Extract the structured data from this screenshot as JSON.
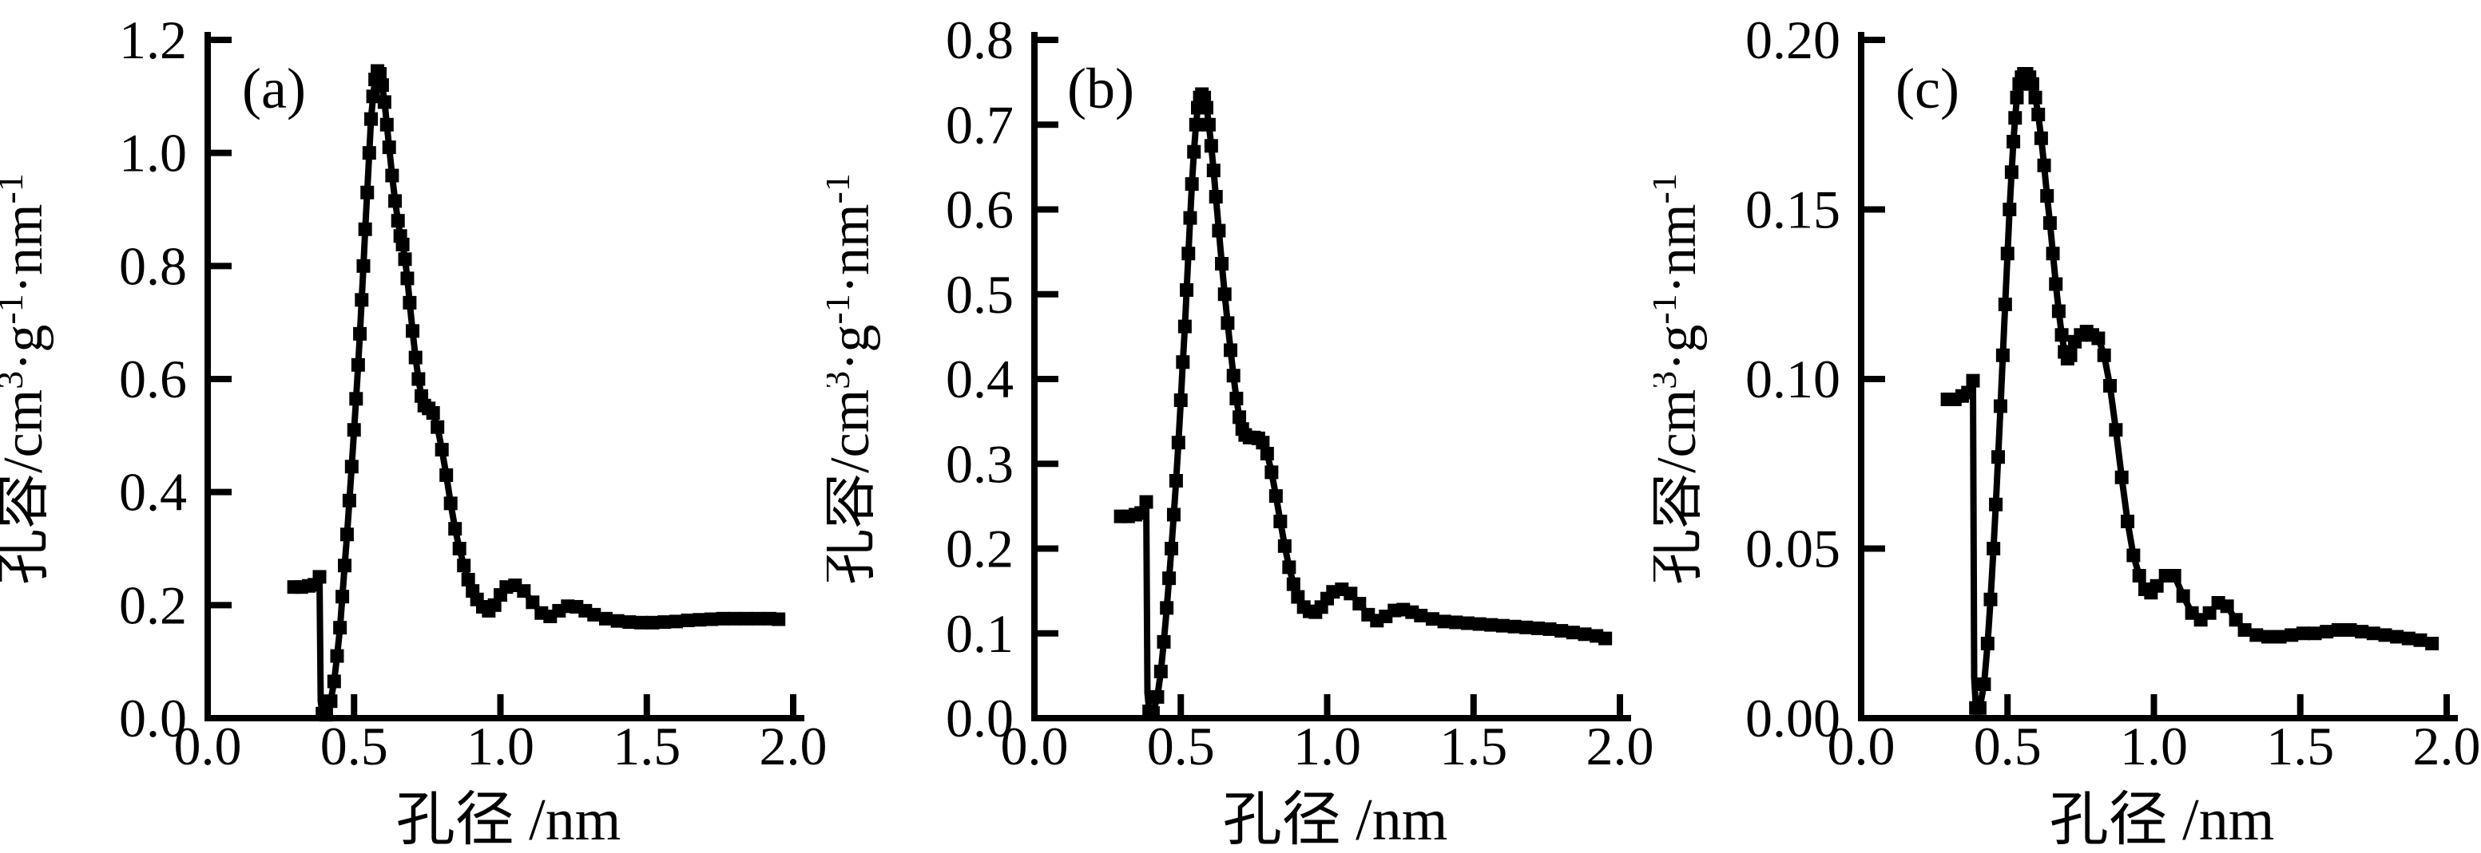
{
  "figure": {
    "background": "#ffffff",
    "ink_color": "#000000",
    "panel_labels": [
      "(a)",
      "(b)",
      "(c)"
    ]
  },
  "chart_data": [
    {
      "type": "line",
      "title": "",
      "panel_label": "(a)",
      "xlabel": "孔径 /nm",
      "ylabel": "孔容/cm³·g⁻¹·nm⁻¹",
      "ylabel_parts": [
        {
          "t": "孔容/cm"
        },
        {
          "t": "3",
          "sup": true
        },
        {
          "t": "·g"
        },
        {
          "t": "-1",
          "sup": true
        },
        {
          "t": "·nm"
        },
        {
          "t": "-1",
          "sup": true
        }
      ],
      "xlim": [
        0.0,
        2.0
      ],
      "ylim": [
        0.0,
        1.2
      ],
      "grid": false,
      "legend": "none",
      "marker": "square",
      "color": "#000000",
      "xticks": {
        "values": [
          0.0,
          0.5,
          1.0,
          1.5,
          2.0
        ],
        "labels": [
          "0.0",
          "0.5",
          "1.0",
          "1.5",
          "2.0"
        ]
      },
      "yticks": {
        "values": [
          0.0,
          0.2,
          0.4,
          0.6,
          0.8,
          1.0,
          1.2
        ],
        "labels": [
          "0.0",
          "0.2",
          "0.4",
          "0.6",
          "0.8",
          "1.0",
          "1.2"
        ]
      },
      "points": [
        [
          0.295,
          0.232
        ],
        [
          0.32,
          0.232
        ],
        [
          0.345,
          0.234
        ],
        [
          0.365,
          0.236
        ],
        [
          0.382,
          0.25
        ],
        [
          0.386,
          0.03
        ],
        [
          0.392,
          0.008
        ],
        [
          0.405,
          0.006
        ],
        [
          0.42,
          0.03
        ],
        [
          0.432,
          0.065
        ],
        [
          0.442,
          0.11
        ],
        [
          0.452,
          0.16
        ],
        [
          0.46,
          0.215
        ],
        [
          0.468,
          0.27
        ],
        [
          0.476,
          0.325
        ],
        [
          0.484,
          0.385
        ],
        [
          0.492,
          0.445
        ],
        [
          0.5,
          0.51
        ],
        [
          0.507,
          0.565
        ],
        [
          0.514,
          0.625
        ],
        [
          0.52,
          0.68
        ],
        [
          0.526,
          0.74
        ],
        [
          0.532,
          0.8
        ],
        [
          0.538,
          0.865
        ],
        [
          0.545,
          0.93
        ],
        [
          0.552,
          1.0
        ],
        [
          0.558,
          1.06
        ],
        [
          0.565,
          1.1
        ],
        [
          0.572,
          1.13
        ],
        [
          0.58,
          1.145
        ],
        [
          0.588,
          1.14
        ],
        [
          0.596,
          1.12
        ],
        [
          0.604,
          1.09
        ],
        [
          0.612,
          1.05
        ],
        [
          0.62,
          1.01
        ],
        [
          0.63,
          0.96
        ],
        [
          0.64,
          0.915
        ],
        [
          0.65,
          0.88
        ],
        [
          0.658,
          0.853
        ],
        [
          0.666,
          0.838
        ],
        [
          0.674,
          0.812
        ],
        [
          0.682,
          0.778
        ],
        [
          0.69,
          0.735
        ],
        [
          0.7,
          0.685
        ],
        [
          0.71,
          0.638
        ],
        [
          0.72,
          0.6
        ],
        [
          0.73,
          0.57
        ],
        [
          0.74,
          0.553
        ],
        [
          0.755,
          0.548
        ],
        [
          0.77,
          0.54
        ],
        [
          0.785,
          0.515
        ],
        [
          0.8,
          0.475
        ],
        [
          0.815,
          0.43
        ],
        [
          0.83,
          0.38
        ],
        [
          0.845,
          0.335
        ],
        [
          0.86,
          0.3
        ],
        [
          0.875,
          0.27
        ],
        [
          0.89,
          0.245
        ],
        [
          0.905,
          0.225
        ],
        [
          0.92,
          0.21
        ],
        [
          0.94,
          0.197
        ],
        [
          0.96,
          0.19
        ],
        [
          0.98,
          0.2
        ],
        [
          1.0,
          0.218
        ],
        [
          1.02,
          0.232
        ],
        [
          1.05,
          0.235
        ],
        [
          1.08,
          0.225
        ],
        [
          1.11,
          0.205
        ],
        [
          1.14,
          0.186
        ],
        [
          1.17,
          0.18
        ],
        [
          1.2,
          0.19
        ],
        [
          1.23,
          0.198
        ],
        [
          1.26,
          0.197
        ],
        [
          1.29,
          0.19
        ],
        [
          1.32,
          0.183
        ],
        [
          1.36,
          0.176
        ],
        [
          1.4,
          0.172
        ],
        [
          1.44,
          0.17
        ],
        [
          1.48,
          0.169
        ],
        [
          1.52,
          0.169
        ],
        [
          1.56,
          0.17
        ],
        [
          1.6,
          0.171
        ],
        [
          1.64,
          0.173
        ],
        [
          1.68,
          0.174
        ],
        [
          1.72,
          0.175
        ],
        [
          1.76,
          0.176
        ],
        [
          1.8,
          0.176
        ],
        [
          1.84,
          0.176
        ],
        [
          1.88,
          0.176
        ],
        [
          1.92,
          0.176
        ],
        [
          1.95,
          0.175
        ]
      ]
    },
    {
      "type": "line",
      "title": "",
      "panel_label": "(b)",
      "xlabel": "孔径 /nm",
      "ylabel": "孔容/cm³·g⁻¹·nm⁻¹",
      "ylabel_parts": [
        {
          "t": "孔容/cm"
        },
        {
          "t": "3",
          "sup": true
        },
        {
          "t": "·g"
        },
        {
          "t": "-1",
          "sup": true
        },
        {
          "t": "·nm"
        },
        {
          "t": "-1",
          "sup": true
        }
      ],
      "xlim": [
        0.0,
        2.0
      ],
      "ylim": [
        0.0,
        0.8
      ],
      "grid": false,
      "legend": "none",
      "marker": "square",
      "color": "#000000",
      "xticks": {
        "values": [
          0.0,
          0.5,
          1.0,
          1.5,
          2.0
        ],
        "labels": [
          "0.0",
          "0.5",
          "1.0",
          "1.5",
          "2.0"
        ]
      },
      "yticks": {
        "values": [
          0.0,
          0.1,
          0.2,
          0.3,
          0.4,
          0.5,
          0.6,
          0.7,
          0.8
        ],
        "labels": [
          "0.0",
          "0.1",
          "0.2",
          "0.3",
          "0.4",
          "0.5",
          "0.6",
          "0.7",
          "0.8"
        ]
      },
      "points": [
        [
          0.295,
          0.238
        ],
        [
          0.32,
          0.238
        ],
        [
          0.345,
          0.24
        ],
        [
          0.365,
          0.242
        ],
        [
          0.382,
          0.255
        ],
        [
          0.386,
          0.03
        ],
        [
          0.392,
          0.008
        ],
        [
          0.405,
          0.006
        ],
        [
          0.42,
          0.025
        ],
        [
          0.432,
          0.055
        ],
        [
          0.442,
          0.09
        ],
        [
          0.452,
          0.13
        ],
        [
          0.46,
          0.165
        ],
        [
          0.468,
          0.2
        ],
        [
          0.476,
          0.24
        ],
        [
          0.484,
          0.28
        ],
        [
          0.492,
          0.325
        ],
        [
          0.5,
          0.375
        ],
        [
          0.507,
          0.42
        ],
        [
          0.514,
          0.462
        ],
        [
          0.52,
          0.505
        ],
        [
          0.526,
          0.548
        ],
        [
          0.532,
          0.59
        ],
        [
          0.538,
          0.63
        ],
        [
          0.545,
          0.668
        ],
        [
          0.552,
          0.7
        ],
        [
          0.558,
          0.72
        ],
        [
          0.565,
          0.732
        ],
        [
          0.572,
          0.736
        ],
        [
          0.58,
          0.732
        ],
        [
          0.588,
          0.72
        ],
        [
          0.596,
          0.7
        ],
        [
          0.604,
          0.675
        ],
        [
          0.612,
          0.646
        ],
        [
          0.62,
          0.615
        ],
        [
          0.63,
          0.575
        ],
        [
          0.64,
          0.536
        ],
        [
          0.65,
          0.5
        ],
        [
          0.66,
          0.466
        ],
        [
          0.67,
          0.434
        ],
        [
          0.68,
          0.404
        ],
        [
          0.69,
          0.377
        ],
        [
          0.7,
          0.355
        ],
        [
          0.71,
          0.341
        ],
        [
          0.72,
          0.334
        ],
        [
          0.735,
          0.331
        ],
        [
          0.75,
          0.331
        ],
        [
          0.765,
          0.33
        ],
        [
          0.78,
          0.325
        ],
        [
          0.795,
          0.312
        ],
        [
          0.81,
          0.29
        ],
        [
          0.825,
          0.262
        ],
        [
          0.84,
          0.232
        ],
        [
          0.855,
          0.203
        ],
        [
          0.87,
          0.178
        ],
        [
          0.885,
          0.158
        ],
        [
          0.9,
          0.143
        ],
        [
          0.92,
          0.131
        ],
        [
          0.94,
          0.126
        ],
        [
          0.96,
          0.125
        ],
        [
          0.98,
          0.131
        ],
        [
          1.0,
          0.141
        ],
        [
          1.02,
          0.149
        ],
        [
          1.05,
          0.152
        ],
        [
          1.08,
          0.147
        ],
        [
          1.11,
          0.135
        ],
        [
          1.14,
          0.122
        ],
        [
          1.17,
          0.115
        ],
        [
          1.2,
          0.12
        ],
        [
          1.23,
          0.127
        ],
        [
          1.26,
          0.128
        ],
        [
          1.29,
          0.125
        ],
        [
          1.32,
          0.121
        ],
        [
          1.36,
          0.117
        ],
        [
          1.4,
          0.114
        ],
        [
          1.44,
          0.113
        ],
        [
          1.48,
          0.112
        ],
        [
          1.52,
          0.111
        ],
        [
          1.56,
          0.11
        ],
        [
          1.6,
          0.109
        ],
        [
          1.64,
          0.108
        ],
        [
          1.68,
          0.107
        ],
        [
          1.72,
          0.106
        ],
        [
          1.76,
          0.105
        ],
        [
          1.8,
          0.103
        ],
        [
          1.84,
          0.101
        ],
        [
          1.88,
          0.099
        ],
        [
          1.92,
          0.097
        ],
        [
          1.95,
          0.094
        ]
      ]
    },
    {
      "type": "line",
      "title": "",
      "panel_label": "(c)",
      "xlabel": "孔径 /nm",
      "ylabel": "孔容/cm³·g⁻¹·nm⁻¹",
      "ylabel_parts": [
        {
          "t": "孔容/cm"
        },
        {
          "t": "3",
          "sup": true
        },
        {
          "t": "·g"
        },
        {
          "t": "-1",
          "sup": true
        },
        {
          "t": "·nm"
        },
        {
          "t": "-1",
          "sup": true
        }
      ],
      "xlim": [
        0.0,
        2.0
      ],
      "ylim": [
        0.0,
        0.2
      ],
      "grid": false,
      "legend": "none",
      "marker": "square",
      "color": "#000000",
      "xticks": {
        "values": [
          0.0,
          0.5,
          1.0,
          1.5,
          2.0
        ],
        "labels": [
          "0.0",
          "0.5",
          "1.0",
          "1.5",
          "2.0"
        ]
      },
      "yticks": {
        "values": [
          0.0,
          0.05,
          0.1,
          0.15,
          0.2
        ],
        "labels": [
          "0.00",
          "0.05",
          "0.10",
          "0.15",
          "0.20"
        ]
      },
      "points": [
        [
          0.295,
          0.094
        ],
        [
          0.32,
          0.094
        ],
        [
          0.345,
          0.095
        ],
        [
          0.365,
          0.096
        ],
        [
          0.382,
          0.0995
        ],
        [
          0.386,
          0.012
        ],
        [
          0.392,
          0.003
        ],
        [
          0.405,
          0.003
        ],
        [
          0.42,
          0.01
        ],
        [
          0.432,
          0.022
        ],
        [
          0.442,
          0.035
        ],
        [
          0.452,
          0.05
        ],
        [
          0.46,
          0.063
        ],
        [
          0.468,
          0.077
        ],
        [
          0.476,
          0.092
        ],
        [
          0.484,
          0.107
        ],
        [
          0.492,
          0.122
        ],
        [
          0.5,
          0.137
        ],
        [
          0.507,
          0.15
        ],
        [
          0.514,
          0.161
        ],
        [
          0.52,
          0.17
        ],
        [
          0.526,
          0.177
        ],
        [
          0.532,
          0.183
        ],
        [
          0.54,
          0.187
        ],
        [
          0.548,
          0.189
        ],
        [
          0.556,
          0.19
        ],
        [
          0.565,
          0.19
        ],
        [
          0.575,
          0.189
        ],
        [
          0.585,
          0.187
        ],
        [
          0.595,
          0.183
        ],
        [
          0.605,
          0.178
        ],
        [
          0.615,
          0.171
        ],
        [
          0.625,
          0.163
        ],
        [
          0.635,
          0.154
        ],
        [
          0.645,
          0.146
        ],
        [
          0.655,
          0.137
        ],
        [
          0.665,
          0.128
        ],
        [
          0.675,
          0.12
        ],
        [
          0.685,
          0.113
        ],
        [
          0.695,
          0.108
        ],
        [
          0.705,
          0.106
        ],
        [
          0.715,
          0.107
        ],
        [
          0.73,
          0.111
        ],
        [
          0.75,
          0.113
        ],
        [
          0.77,
          0.114
        ],
        [
          0.79,
          0.113
        ],
        [
          0.81,
          0.112
        ],
        [
          0.83,
          0.107
        ],
        [
          0.85,
          0.098
        ],
        [
          0.87,
          0.085
        ],
        [
          0.89,
          0.071
        ],
        [
          0.91,
          0.058
        ],
        [
          0.93,
          0.048
        ],
        [
          0.95,
          0.042
        ],
        [
          0.97,
          0.038
        ],
        [
          0.99,
          0.037
        ],
        [
          1.01,
          0.039
        ],
        [
          1.04,
          0.042
        ],
        [
          1.07,
          0.042
        ],
        [
          1.1,
          0.036
        ],
        [
          1.13,
          0.031
        ],
        [
          1.16,
          0.029
        ],
        [
          1.19,
          0.031
        ],
        [
          1.22,
          0.034
        ],
        [
          1.25,
          0.033
        ],
        [
          1.28,
          0.029
        ],
        [
          1.31,
          0.026
        ],
        [
          1.35,
          0.0245
        ],
        [
          1.39,
          0.024
        ],
        [
          1.43,
          0.024
        ],
        [
          1.47,
          0.0245
        ],
        [
          1.51,
          0.025
        ],
        [
          1.55,
          0.025
        ],
        [
          1.59,
          0.0255
        ],
        [
          1.63,
          0.026
        ],
        [
          1.67,
          0.026
        ],
        [
          1.71,
          0.0255
        ],
        [
          1.75,
          0.025
        ],
        [
          1.79,
          0.0245
        ],
        [
          1.83,
          0.024
        ],
        [
          1.87,
          0.0235
        ],
        [
          1.91,
          0.023
        ],
        [
          1.95,
          0.022
        ]
      ]
    }
  ]
}
